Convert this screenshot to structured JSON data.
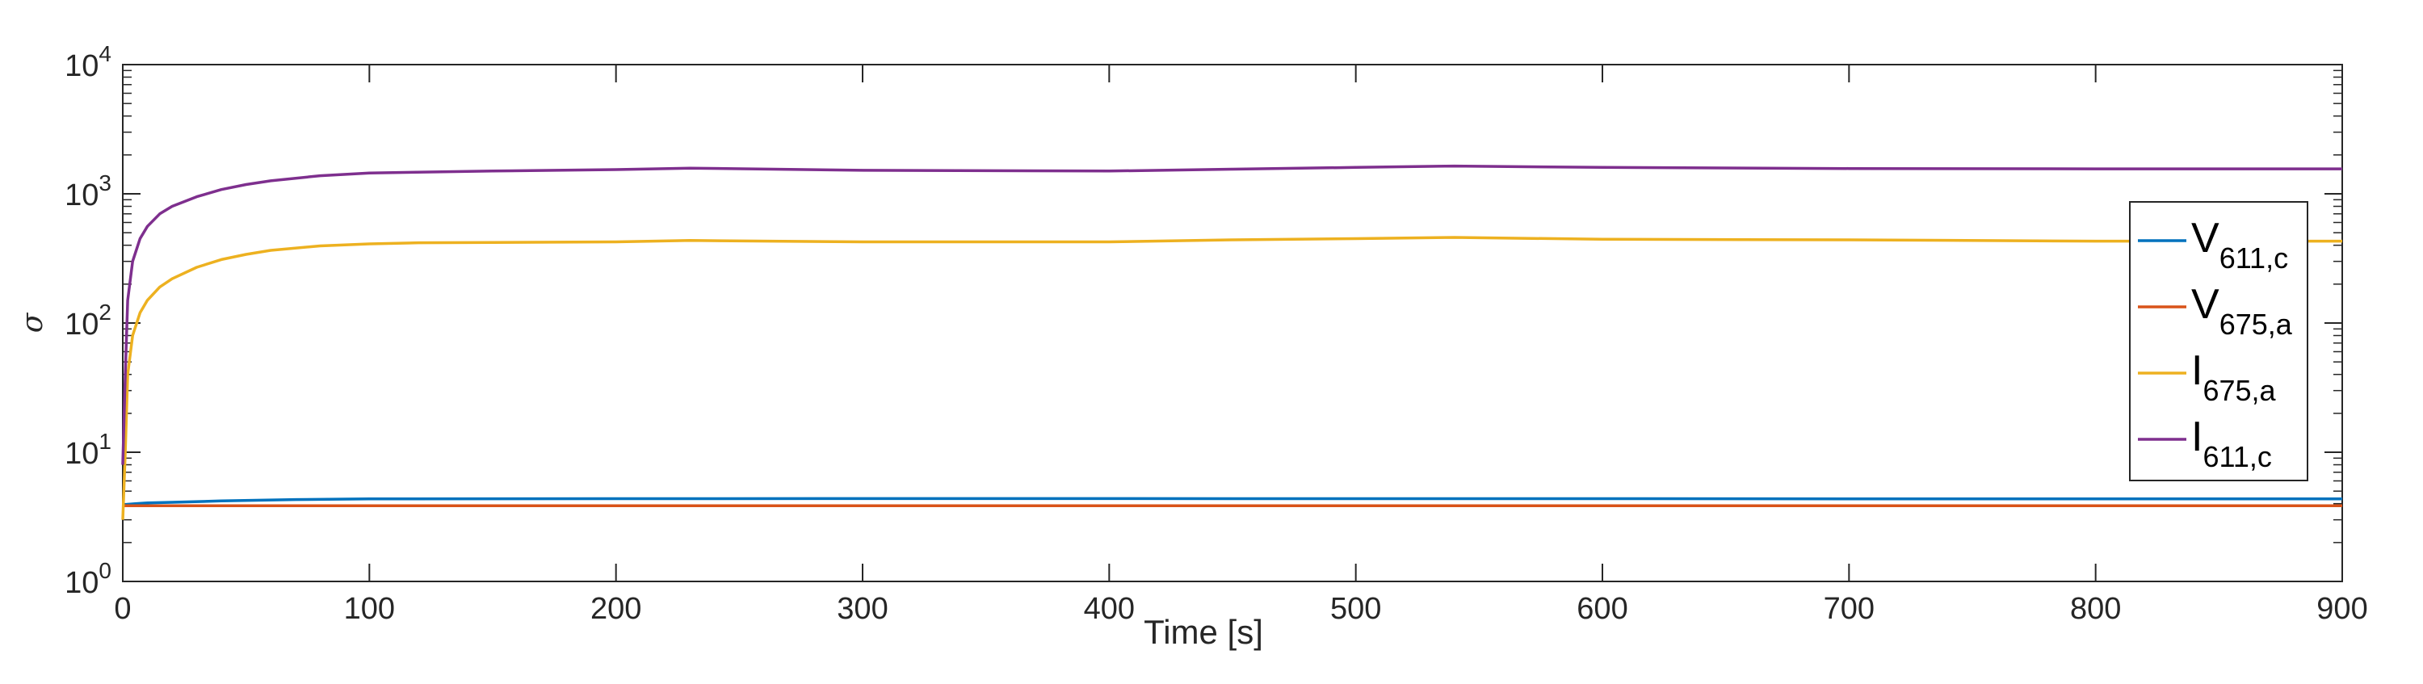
{
  "chart_data": {
    "type": "line",
    "title": "",
    "xlabel": "Time [s]",
    "ylabel": "σ",
    "xlim": [
      0,
      900
    ],
    "ylim": [
      1,
      10000
    ],
    "yscale": "log",
    "grid": false,
    "legend_position": "right",
    "x_ticks": [
      {
        "value": 0,
        "label": "0"
      },
      {
        "value": 100,
        "label": "100"
      },
      {
        "value": 200,
        "label": "200"
      },
      {
        "value": 300,
        "label": "300"
      },
      {
        "value": 400,
        "label": "400"
      },
      {
        "value": 500,
        "label": "500"
      },
      {
        "value": 600,
        "label": "600"
      },
      {
        "value": 700,
        "label": "700"
      },
      {
        "value": 800,
        "label": "800"
      },
      {
        "value": 900,
        "label": "900"
      }
    ],
    "y_ticks": [
      {
        "value": 1,
        "base": "10",
        "exp": "0"
      },
      {
        "value": 10,
        "base": "10",
        "exp": "1"
      },
      {
        "value": 100,
        "base": "10",
        "exp": "2"
      },
      {
        "value": 1000,
        "base": "10",
        "exp": "3"
      },
      {
        "value": 10000,
        "base": "10",
        "exp": "4"
      }
    ],
    "series": [
      {
        "name": "V611,c",
        "name_main": "V",
        "name_sub": "611,c",
        "color": "#0072BD",
        "x": [
          0,
          2,
          5,
          10,
          20,
          40,
          70,
          100,
          200,
          300,
          400,
          500,
          600,
          700,
          800,
          900
        ],
        "y": [
          3.9,
          3.95,
          4.0,
          4.05,
          4.1,
          4.2,
          4.3,
          4.35,
          4.37,
          4.38,
          4.38,
          4.37,
          4.37,
          4.36,
          4.36,
          4.35
        ]
      },
      {
        "name": "V675,a",
        "name_main": "V",
        "name_sub": "675,a",
        "color": "#D95319",
        "x": [
          0,
          5,
          50,
          100,
          200,
          300,
          400,
          500,
          600,
          700,
          800,
          900
        ],
        "y": [
          3.85,
          3.85,
          3.85,
          3.85,
          3.85,
          3.85,
          3.85,
          3.85,
          3.85,
          3.85,
          3.85,
          3.85
        ]
      },
      {
        "name": "I675,a",
        "name_main": "I",
        "name_sub": "675,a",
        "color": "#EDB120",
        "x": [
          0,
          1,
          2,
          4,
          7,
          10,
          15,
          20,
          30,
          40,
          50,
          60,
          80,
          100,
          120,
          150,
          200,
          230,
          300,
          400,
          450,
          500,
          540,
          600,
          700,
          800,
          900
        ],
        "y": [
          3,
          10,
          40,
          80,
          120,
          150,
          190,
          220,
          270,
          310,
          340,
          365,
          395,
          410,
          418,
          420,
          425,
          435,
          425,
          425,
          440,
          450,
          460,
          445,
          440,
          430,
          430
        ]
      },
      {
        "name": "I611,c",
        "name_main": "I",
        "name_sub": "611,c",
        "color": "#7E2F8E",
        "x": [
          0,
          1,
          2,
          4,
          7,
          10,
          15,
          20,
          30,
          40,
          50,
          60,
          80,
          100,
          150,
          200,
          230,
          300,
          400,
          450,
          500,
          540,
          600,
          700,
          800,
          900
        ],
        "y": [
          8,
          40,
          150,
          300,
          450,
          560,
          700,
          800,
          950,
          1080,
          1180,
          1260,
          1380,
          1450,
          1500,
          1540,
          1580,
          1520,
          1500,
          1550,
          1600,
          1640,
          1600,
          1570,
          1560,
          1560
        ]
      }
    ]
  }
}
